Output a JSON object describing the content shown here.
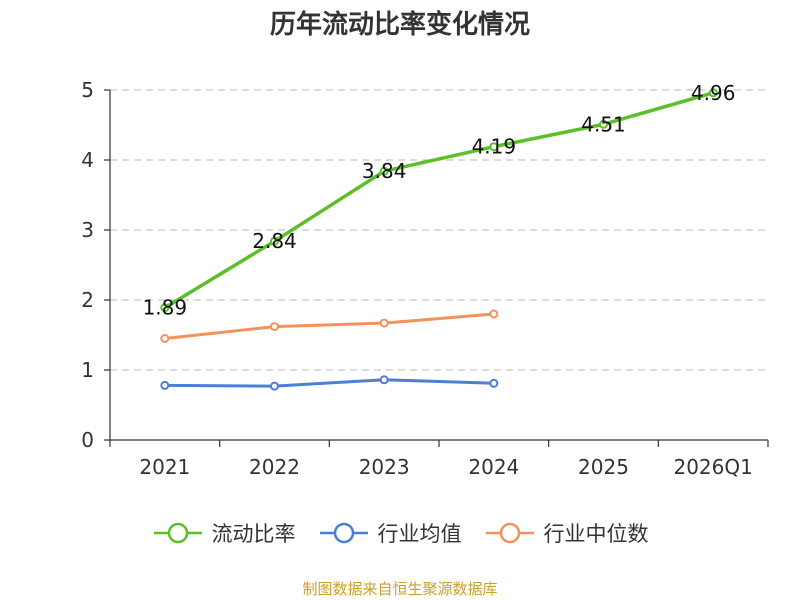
{
  "title": "历年流动比率变化情况",
  "source": "制图数据来自恒生聚源数据库",
  "chart_data": {
    "type": "line",
    "categories": [
      "2021",
      "2022",
      "2023",
      "2024",
      "2025",
      "2026Q1"
    ],
    "ylim": [
      0,
      5
    ],
    "yticks": [
      "0",
      "1",
      "2",
      "3",
      "4",
      "5"
    ],
    "grid": true,
    "legend_position": "bottom",
    "series": [
      {
        "name": "流动比率",
        "color": "#5cbf2a",
        "values": [
          1.89,
          2.84,
          3.84,
          4.19,
          4.51,
          4.96
        ],
        "labels": [
          "1.89",
          "2.84",
          "3.84",
          "4.19",
          "4.51",
          "4.96"
        ]
      },
      {
        "name": "行业均值",
        "color": "#4a7fd6",
        "values": [
          0.78,
          0.77,
          0.86,
          0.81,
          null,
          null
        ]
      },
      {
        "name": "行业中位数",
        "color": "#f5925c",
        "values": [
          1.45,
          1.62,
          1.67,
          1.8,
          null,
          null
        ]
      }
    ]
  }
}
